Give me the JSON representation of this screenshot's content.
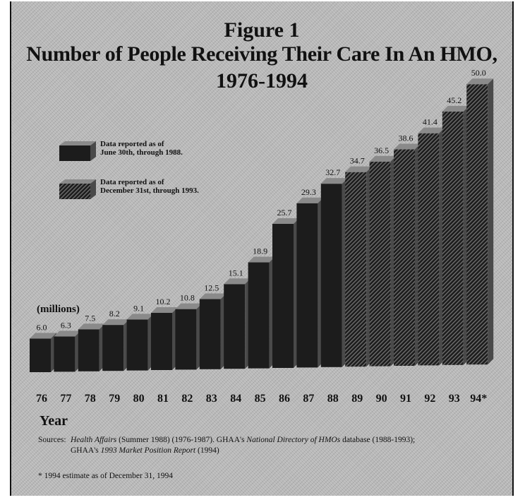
{
  "figure_label": "Figure 1",
  "title_line1": "Number of People Receiving Their Care In An HMO,",
  "title_line2": "1976-1994",
  "unit_label": "(millions)",
  "x_title": "Year",
  "legend": [
    {
      "line1": "Data reported as of",
      "line2": "June 30th, through 1988.",
      "style": "dark"
    },
    {
      "line1": "Data reported as of",
      "line2": "December 31st, through 1993.",
      "style": "striped"
    }
  ],
  "sources": {
    "label": "Sources:",
    "line1_parts": [
      {
        "text": "Health Affairs",
        "italic": true
      },
      {
        "text": " (Summer 1988) (1976-1987). GHAA's ",
        "italic": false
      },
      {
        "text": "National Directory of HMOs",
        "italic": true
      },
      {
        "text": " database (1988-1993);",
        "italic": false
      }
    ],
    "line2_parts": [
      {
        "text": "GHAA's ",
        "italic": false
      },
      {
        "text": "1993 Market Position Report",
        "italic": true
      },
      {
        "text": " (1994)",
        "italic": false
      }
    ]
  },
  "footnote": "* 1994 estimate as of December 31, 1994",
  "colors": {
    "bar_dark": "#1c1c1c",
    "bar_top": "#8a8a8a",
    "bar_side": "#4a4a4a",
    "background": "#b9b9b9"
  },
  "chart_data": {
    "type": "bar",
    "categories": [
      "76",
      "77",
      "78",
      "79",
      "80",
      "81",
      "82",
      "83",
      "84",
      "85",
      "86",
      "87",
      "88",
      "89",
      "90",
      "91",
      "92",
      "93",
      "94*"
    ],
    "values": [
      6.0,
      6.3,
      7.5,
      8.2,
      9.1,
      10.2,
      10.8,
      12.5,
      15.1,
      18.9,
      25.7,
      29.3,
      32.7,
      34.7,
      36.5,
      38.6,
      41.4,
      45.2,
      50.0
    ],
    "value_labels": [
      "6.0",
      "6.3",
      "7.5",
      "8.2",
      "9.1",
      "10.2",
      "10.8",
      "12.5",
      "15.1",
      "18.9",
      "25.7",
      "29.3",
      "32.7",
      "34.7",
      "36.5",
      "38.6",
      "41.4",
      "45.2",
      "50.0"
    ],
    "bar_style": [
      "dark",
      "dark",
      "dark",
      "dark",
      "dark",
      "dark",
      "dark",
      "dark",
      "dark",
      "dark",
      "dark",
      "dark",
      "dark",
      "striped",
      "striped",
      "striped",
      "striped",
      "striped",
      "striped"
    ],
    "ylim": [
      0,
      50
    ]
  }
}
